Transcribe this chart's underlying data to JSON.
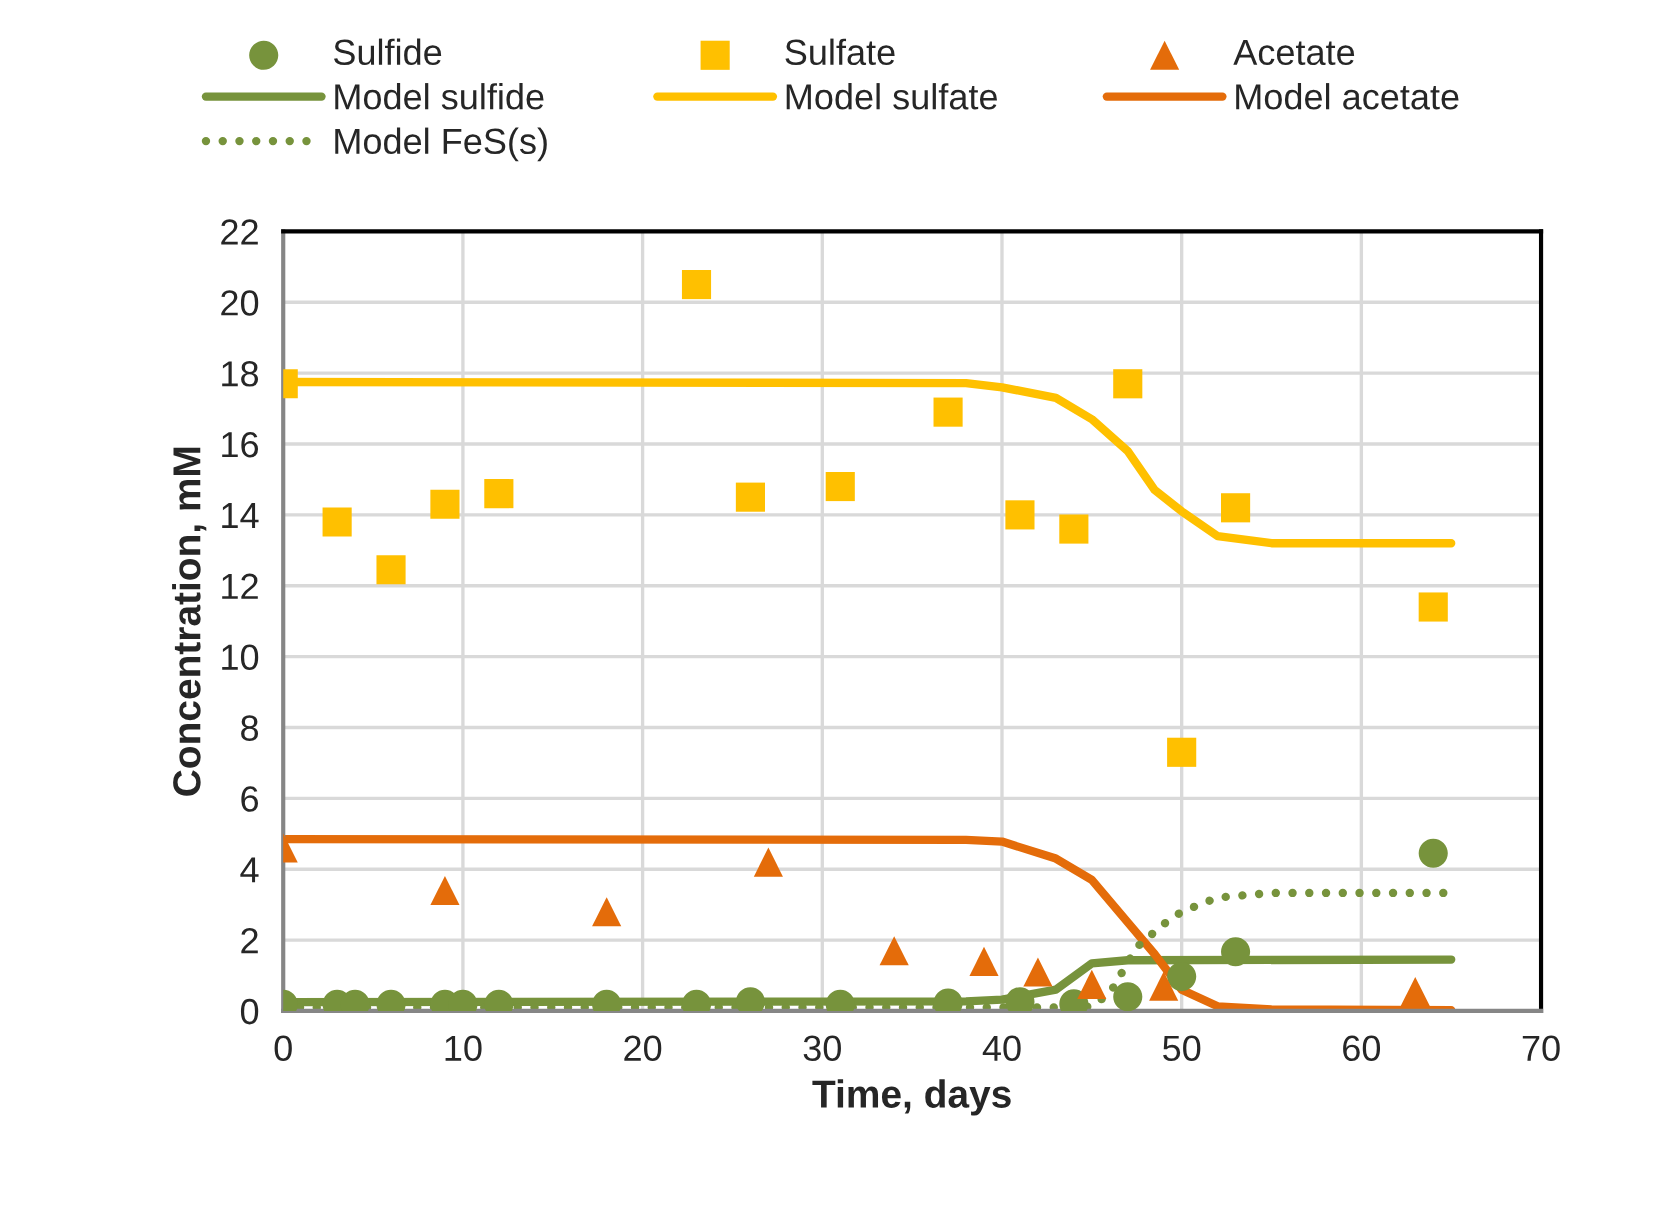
{
  "chart_data": {
    "type": "scatter",
    "xlabel": "Time, days",
    "ylabel": "Concentration, mM",
    "xlim": [
      0,
      70
    ],
    "ylim": [
      0,
      22
    ],
    "xticks": [
      0,
      10,
      20,
      30,
      40,
      50,
      60,
      70
    ],
    "yticks": [
      0,
      2,
      4,
      6,
      8,
      10,
      12,
      14,
      16,
      18,
      20,
      22
    ],
    "grid": true,
    "legend": "top",
    "series": [
      {
        "name": "Sulfide",
        "marker": "circle",
        "color": "#77933c",
        "x": [
          0,
          3,
          4,
          6,
          9,
          10,
          12,
          18,
          23,
          26,
          31,
          37,
          41,
          44,
          47,
          50,
          53,
          64
        ],
        "values": [
          0.19,
          0.19,
          0.19,
          0.19,
          0.19,
          0.19,
          0.19,
          0.19,
          0.19,
          0.26,
          0.19,
          0.22,
          0.26,
          0.2,
          0.4,
          0.97,
          1.67,
          4.45
        ]
      },
      {
        "name": "Sulfate",
        "marker": "square",
        "color": "#ffc000",
        "x": [
          0,
          3,
          6,
          9,
          12,
          23,
          26,
          31,
          37,
          41,
          44,
          47,
          50,
          53,
          64
        ],
        "values": [
          17.7,
          13.8,
          12.45,
          14.3,
          14.6,
          20.5,
          14.5,
          14.8,
          16.9,
          14.0,
          13.6,
          17.7,
          7.3,
          14.2,
          11.4
        ]
      },
      {
        "name": "Acetate",
        "marker": "triangle",
        "color": "#e46c0a",
        "x": [
          0,
          9,
          18,
          27,
          34,
          39,
          42,
          45,
          49,
          63
        ],
        "values": [
          4.6,
          3.4,
          2.8,
          4.2,
          1.7,
          1.4,
          1.1,
          0.75,
          0.7,
          0.55
        ]
      },
      {
        "name": "Model sulfide",
        "type": "line",
        "line_style": "solid",
        "color": "#77933c",
        "x": [
          0,
          38,
          40,
          43,
          45,
          47,
          65
        ],
        "values": [
          0.25,
          0.27,
          0.32,
          0.6,
          1.34,
          1.43,
          1.45
        ]
      },
      {
        "name": "Model sulfate",
        "type": "line",
        "line_style": "solid",
        "color": "#ffc000",
        "x": [
          0,
          38,
          40,
          43,
          45,
          47,
          48.5,
          50,
          52,
          55,
          65
        ],
        "values": [
          17.75,
          17.72,
          17.6,
          17.3,
          16.7,
          15.8,
          14.7,
          14.1,
          13.4,
          13.2,
          13.2
        ]
      },
      {
        "name": "Model acetate",
        "type": "line",
        "line_style": "solid",
        "color": "#e46c0a",
        "x": [
          0,
          38,
          40,
          43,
          45,
          47,
          48.5,
          50,
          52,
          55,
          65
        ],
        "values": [
          4.85,
          4.83,
          4.78,
          4.3,
          3.7,
          2.5,
          1.6,
          0.6,
          0.13,
          0.04,
          0.02
        ]
      },
      {
        "name": "Model FeS(s)",
        "type": "line",
        "line_style": "dotted",
        "color": "#77933c",
        "x": [
          0,
          44,
          45,
          46,
          47.5,
          49,
          50,
          52,
          55,
          65
        ],
        "values": [
          0.1,
          0.1,
          0.13,
          0.5,
          1.8,
          2.45,
          2.8,
          3.2,
          3.33,
          3.33
        ]
      }
    ]
  }
}
